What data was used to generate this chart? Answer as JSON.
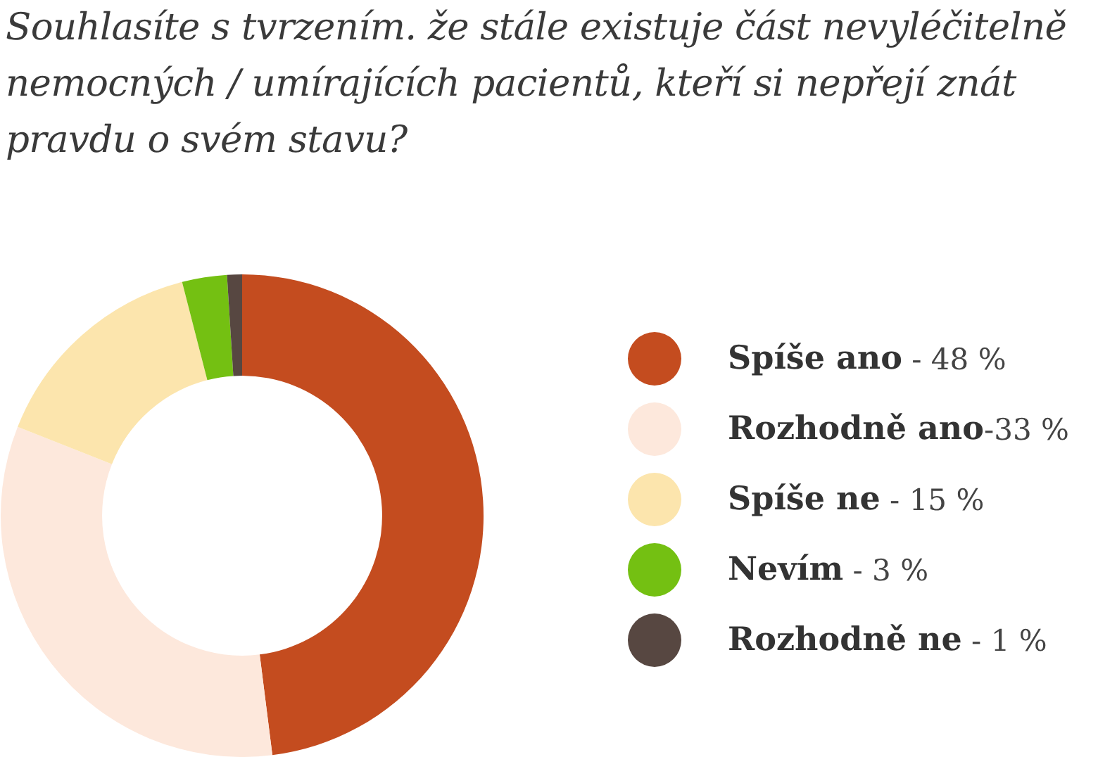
{
  "chart_data": {
    "type": "donut",
    "title": "Souhlasíte s tvrzením. že stále existuje část nevyléčitelně nemocných / umírajících pacientů, kteří si nepřejí znát pravdu o svém stavu?",
    "categories": [
      "Spíše ano",
      "Rozhodně ano",
      "Spíše ne",
      "Nevím",
      "Rozhodně ne"
    ],
    "values": [
      48,
      33,
      15,
      3,
      1
    ],
    "colors": [
      "#c44c1f",
      "#fde8dc",
      "#fce5ad",
      "#74c012",
      "#574741"
    ],
    "value_labels": [
      " ‐ 48 %",
      "‐33 %",
      " ‐ 15 %",
      " ‐ 3 %",
      " ‐ 1 %"
    ],
    "legend": "right"
  }
}
